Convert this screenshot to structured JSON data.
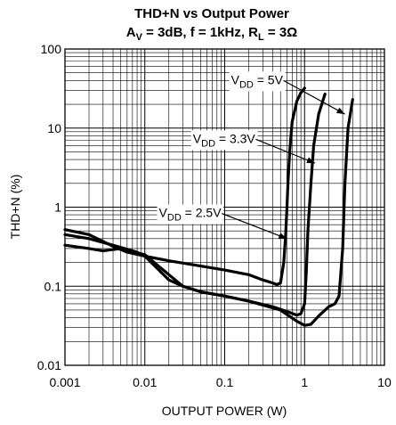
{
  "chart_data": {
    "type": "line",
    "title": "THD+N vs Output Power",
    "subtitle": {
      "av_prefix": "A",
      "av_sub": "V",
      "av_rest": " = 3dB, f = 1kHz, R",
      "rl_sub": "L",
      "rl_rest": " = 3Ω"
    },
    "xlabel": "OUTPUT POWER (W)",
    "ylabel": "THD+N (%)",
    "x_scale": "log",
    "y_scale": "log",
    "xlim": [
      0.001,
      10
    ],
    "ylim": [
      0.01,
      100
    ],
    "x_ticks": [
      "0.001",
      "0.01",
      "0.1",
      "1",
      "10"
    ],
    "y_ticks": [
      "100",
      "10",
      "1",
      "0.1",
      "0.01"
    ],
    "grid": true,
    "series": [
      {
        "name": "VDD = 2.5V",
        "label_prefix": "V",
        "label_sub": "DD",
        "label_rest": " = 2.5V",
        "x": [
          0.001,
          0.002,
          0.004,
          0.006,
          0.01,
          0.02,
          0.05,
          0.1,
          0.2,
          0.3,
          0.4,
          0.45,
          0.5,
          0.55,
          0.58,
          0.6,
          0.62,
          0.65,
          0.7,
          0.8,
          0.9,
          1.0
        ],
        "y": [
          0.52,
          0.45,
          0.32,
          0.27,
          0.24,
          0.21,
          0.18,
          0.16,
          0.14,
          0.12,
          0.11,
          0.105,
          0.11,
          0.2,
          0.45,
          0.9,
          2.0,
          5.0,
          12.0,
          22.0,
          28.0,
          32.0
        ]
      },
      {
        "name": "VDD = 3.3V",
        "label_prefix": "V",
        "label_sub": "DD",
        "label_rest": " = 3.3V",
        "x": [
          0.001,
          0.002,
          0.004,
          0.008,
          0.01,
          0.015,
          0.02,
          0.03,
          0.05,
          0.1,
          0.2,
          0.4,
          0.6,
          0.8,
          0.9,
          1.0,
          1.05,
          1.1,
          1.2,
          1.3,
          1.5,
          1.8
        ],
        "y": [
          0.45,
          0.4,
          0.33,
          0.27,
          0.24,
          0.16,
          0.12,
          0.1,
          0.085,
          0.075,
          0.065,
          0.055,
          0.048,
          0.043,
          0.045,
          0.06,
          0.15,
          0.5,
          2.0,
          6.0,
          15.0,
          27.0
        ]
      },
      {
        "name": "VDD = 5V",
        "label_prefix": "V",
        "label_sub": "DD",
        "label_rest": " = 5V",
        "x": [
          0.001,
          0.002,
          0.003,
          0.005,
          0.01,
          0.02,
          0.03,
          0.05,
          0.1,
          0.2,
          0.5,
          0.8,
          1.0,
          1.2,
          1.5,
          2.0,
          2.4,
          2.7,
          3.0,
          3.2,
          3.5,
          4.0
        ],
        "y": [
          0.33,
          0.3,
          0.28,
          0.3,
          0.25,
          0.14,
          0.1,
          0.085,
          0.075,
          0.065,
          0.05,
          0.036,
          0.032,
          0.033,
          0.042,
          0.055,
          0.06,
          0.075,
          0.3,
          2.0,
          10.0,
          23.0
        ]
      }
    ],
    "annotations": [
      {
        "series": 2,
        "label_x": 0.12,
        "label_y": 36,
        "arrow_to_x": 3.2,
        "arrow_to_y": 15
      },
      {
        "series": 1,
        "label_x": 0.04,
        "label_y": 6.5,
        "arrow_to_x": 1.35,
        "arrow_to_y": 3.6
      },
      {
        "series": 0,
        "label_x": 0.015,
        "label_y": 0.75,
        "arrow_to_x": 0.6,
        "arrow_to_y": 0.4
      }
    ]
  }
}
